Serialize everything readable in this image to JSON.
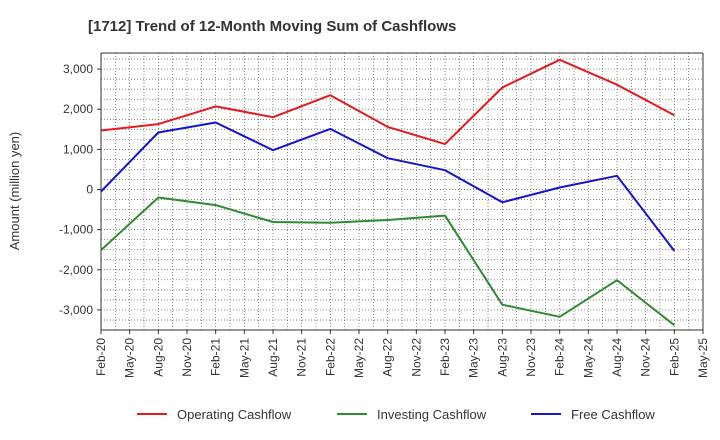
{
  "chart_data": {
    "type": "line",
    "title": "[1712]  Trend of 12-Month Moving Sum of Cashflows",
    "xlabel": "",
    "ylabel": "Amount (million yen)",
    "ylim": [
      -3500,
      3400
    ],
    "yticks": [
      3000,
      2000,
      1000,
      0,
      -1000,
      -2000,
      -3000
    ],
    "ytick_labels": [
      "3,000",
      "2,000",
      "1,000",
      "0",
      "-1,000",
      "-2,000",
      "-3,000"
    ],
    "x_ticks": [
      "Feb-20",
      "May-20",
      "Aug-20",
      "Nov-20",
      "Feb-21",
      "May-21",
      "Aug-21",
      "Nov-21",
      "Feb-22",
      "May-22",
      "Aug-22",
      "Nov-22",
      "Feb-23",
      "May-23",
      "Aug-23",
      "Nov-23",
      "Feb-24",
      "May-24",
      "Aug-24",
      "Nov-24",
      "Feb-25",
      "May-25"
    ],
    "x": [
      "Feb-20",
      "Aug-20",
      "Feb-21",
      "Aug-21",
      "Feb-22",
      "Aug-22",
      "Feb-23",
      "Aug-23",
      "Feb-24",
      "Aug-24",
      "Feb-25"
    ],
    "grid": true,
    "legend_position": "bottom",
    "series": [
      {
        "name": "Operating Cashflow",
        "color": "#e41a1c",
        "values": [
          1470,
          1630,
          2070,
          1800,
          2350,
          1560,
          1130,
          2540,
          3230,
          2610,
          1850
        ]
      },
      {
        "name": "Investing Cashflow",
        "color": "#2e8b2e",
        "values": [
          -1510,
          -200,
          -390,
          -810,
          -830,
          -760,
          -650,
          -2870,
          -3170,
          -2260,
          -3380
        ]
      },
      {
        "name": "Free Cashflow",
        "color": "#1515cc",
        "values": [
          -50,
          1420,
          1670,
          980,
          1510,
          780,
          480,
          -320,
          50,
          340,
          -1530
        ]
      }
    ]
  }
}
